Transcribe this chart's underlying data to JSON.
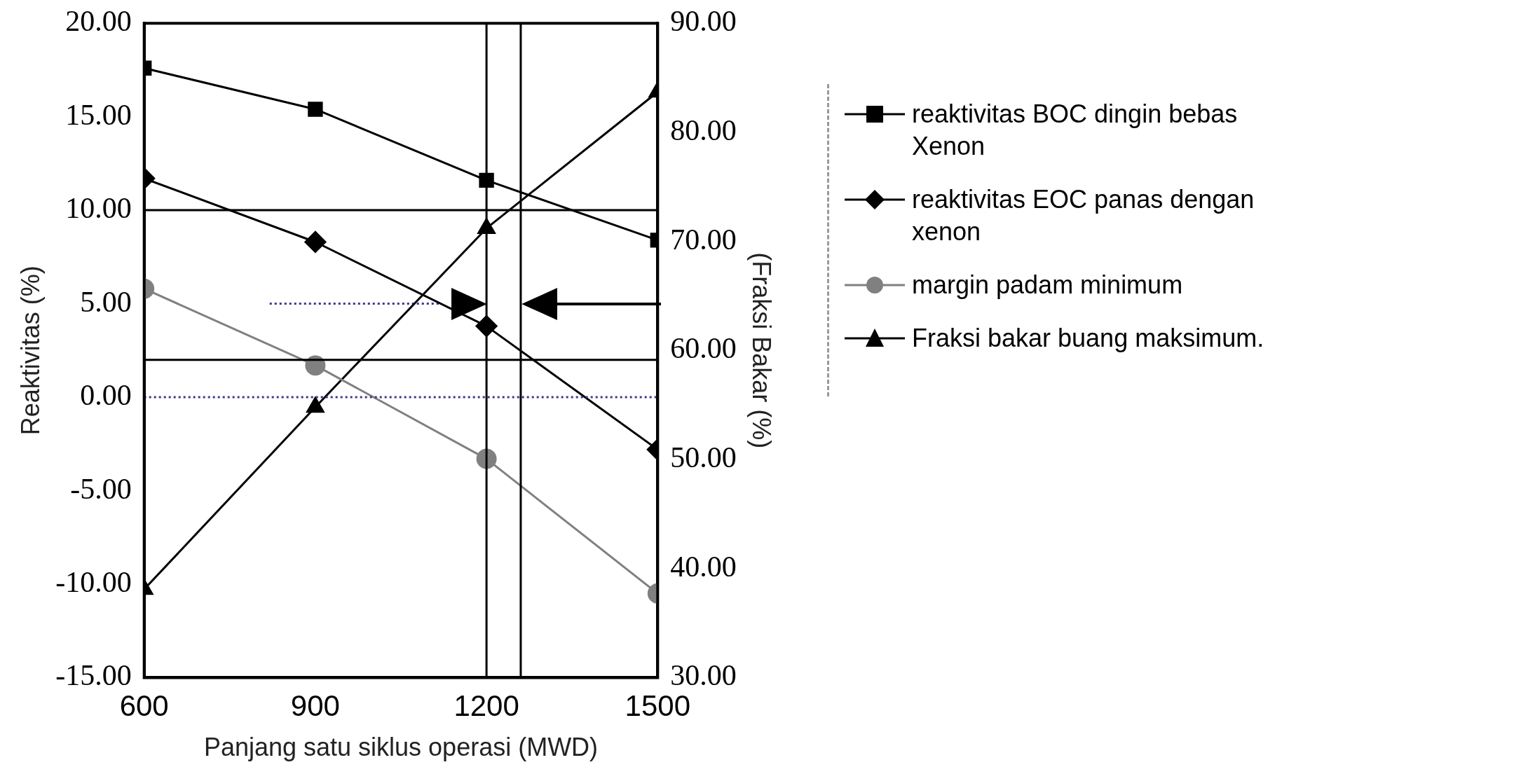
{
  "chart_data": {
    "type": "line",
    "xlabel": "Panjang satu siklus operasi (MWD)",
    "ylabel": "Reaktivitas (%)",
    "y2label": "(Fraksi Bakar (%)",
    "x": [
      600,
      900,
      1200,
      1500
    ],
    "xlim": [
      600,
      1500
    ],
    "xticks": [
      600,
      900,
      1200,
      1500
    ],
    "ylim": [
      -15,
      20
    ],
    "yticks": [
      {
        "value": -15,
        "label": "-15.00"
      },
      {
        "value": -10,
        "label": "-10.00"
      },
      {
        "value": -5,
        "label": "-5.00"
      },
      {
        "value": 0,
        "label": "0.00"
      },
      {
        "value": 5,
        "label": "5.00"
      },
      {
        "value": 10,
        "label": "10.00"
      },
      {
        "value": 15,
        "label": "15.00"
      },
      {
        "value": 20,
        "label": "20.00"
      }
    ],
    "y2lim": [
      30,
      90
    ],
    "y2ticks": [
      {
        "value": 30,
        "label": "30.00"
      },
      {
        "value": 40,
        "label": "40.00"
      },
      {
        "value": 50,
        "label": "50.00"
      },
      {
        "value": 60,
        "label": "60.00"
      },
      {
        "value": 70,
        "label": "70.00"
      },
      {
        "value": 80,
        "label": "80.00"
      },
      {
        "value": 90,
        "label": "90.00"
      }
    ],
    "series": [
      {
        "name": "reaktivitas BOC dingin bebas Xenon",
        "color": "#000000",
        "marker": "square",
        "values": [
          17.6,
          15.4,
          11.6,
          8.4
        ]
      },
      {
        "name": "reaktivitas EOC panas dengan xenon",
        "color": "#000000",
        "marker": "diamond",
        "values": [
          11.7,
          8.3,
          3.8,
          -2.8
        ]
      },
      {
        "name": "margin padam minimum",
        "color": "#808080",
        "marker": "circle",
        "values": [
          5.8,
          1.7,
          -3.3,
          -10.5
        ]
      },
      {
        "name": "Fraksi bakar buang maksimum.",
        "color": "#000000",
        "marker": "triangle",
        "axis": "y2",
        "values": [
          38.1,
          54.8,
          71.2,
          83.7
        ]
      },
      {
        "color": "#3a3a8a",
        "marker": "none",
        "line_style": "dotted",
        "x": [
          820,
          1120
        ],
        "values": [
          5,
          5
        ]
      }
    ],
    "ref_lines": [
      {
        "axis": "y",
        "value": 10,
        "color": "#000000",
        "line_style": "solid"
      },
      {
        "axis": "y",
        "value": 2,
        "color": "#000000",
        "line_style": "solid"
      },
      {
        "axis": "y",
        "value": 0,
        "color": "#3a3a8a",
        "line_style": "dotted"
      },
      {
        "axis": "x",
        "value": 1200,
        "color": "#000000",
        "line_style": "solid"
      },
      {
        "axis": "x",
        "value": 1260,
        "color": "#000000",
        "line_style": "solid"
      }
    ],
    "grid": false,
    "legend": "right"
  }
}
